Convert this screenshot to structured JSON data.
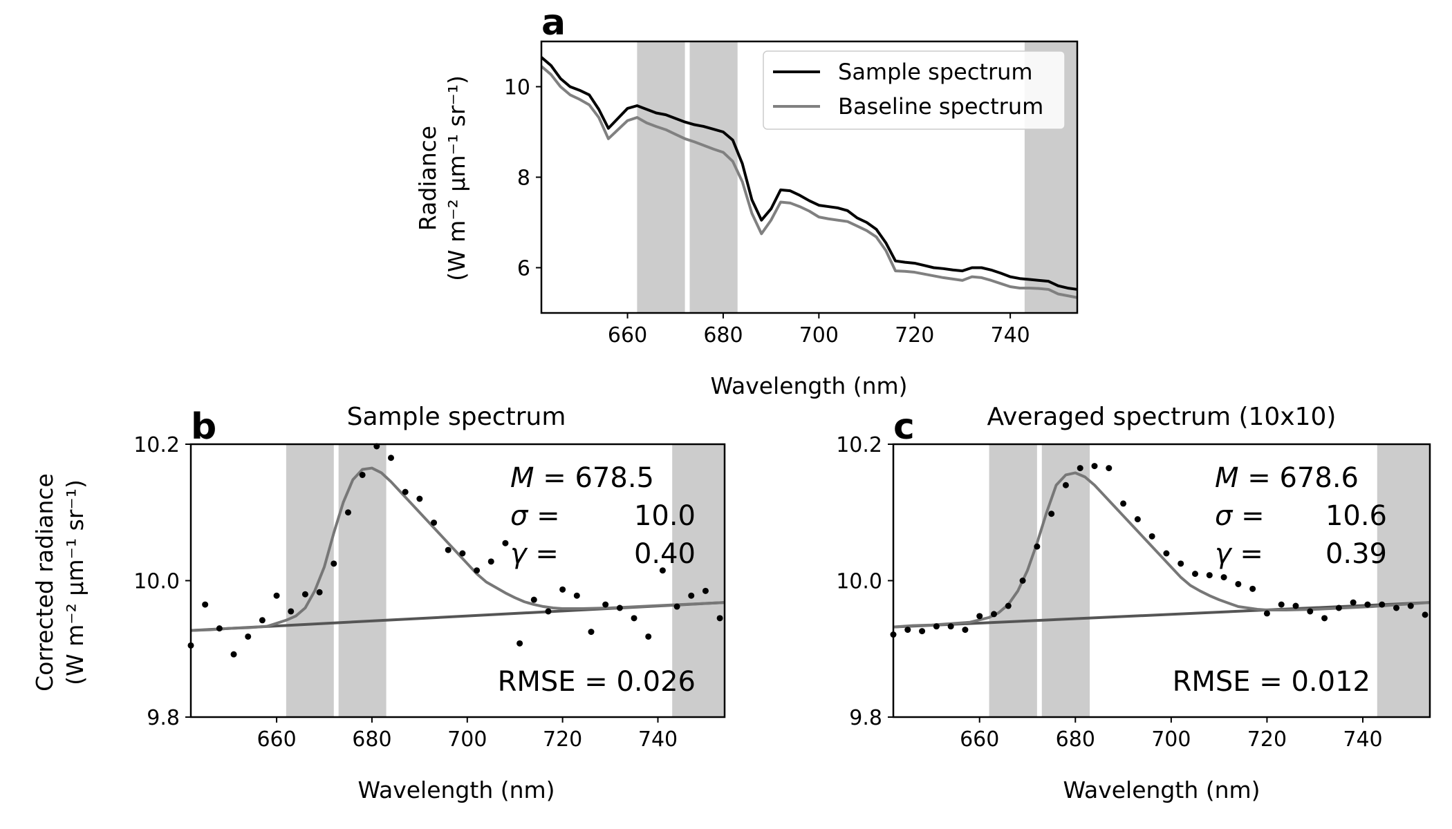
{
  "chart_data": [
    {
      "panel": "a",
      "type": "line",
      "title": "",
      "xlabel": "Wavelength (nm)",
      "ylabel_line1": "Radiance",
      "ylabel_line2": "(W m⁻² μm⁻¹ sr⁻¹)",
      "xlim": [
        642,
        754
      ],
      "ylim": [
        5.0,
        11.0
      ],
      "xticks": [
        "660",
        "680",
        "700",
        "720",
        "740"
      ],
      "yticks": [
        "6",
        "8",
        "10"
      ],
      "shaded_bands": [
        [
          662,
          672
        ],
        [
          673,
          683
        ],
        [
          743,
          754
        ]
      ],
      "legend": {
        "placement": "top-right",
        "entries": [
          "Sample spectrum",
          "Baseline spectrum"
        ]
      },
      "series": [
        {
          "name": "Sample spectrum",
          "color": "#000000",
          "x": [
            642,
            644,
            646,
            648,
            650,
            652,
            654,
            656,
            658,
            660,
            662,
            664,
            666,
            668,
            670,
            672,
            674,
            676,
            678,
            680,
            682,
            684,
            686,
            688,
            690,
            692,
            694,
            696,
            698,
            700,
            702,
            704,
            706,
            708,
            710,
            712,
            714,
            716,
            718,
            720,
            722,
            724,
            726,
            728,
            730,
            732,
            734,
            736,
            738,
            740,
            742,
            744,
            746,
            748,
            750,
            752,
            754
          ],
          "y": [
            10.65,
            10.47,
            10.18,
            10.0,
            9.92,
            9.82,
            9.5,
            9.08,
            9.3,
            9.52,
            9.58,
            9.5,
            9.42,
            9.38,
            9.3,
            9.22,
            9.16,
            9.12,
            9.06,
            9.0,
            8.82,
            8.3,
            7.5,
            7.05,
            7.3,
            7.72,
            7.7,
            7.6,
            7.48,
            7.38,
            7.35,
            7.32,
            7.26,
            7.1,
            7.0,
            6.85,
            6.55,
            6.15,
            6.12,
            6.1,
            6.05,
            6.0,
            5.98,
            5.95,
            5.93,
            6.0,
            6.0,
            5.95,
            5.88,
            5.8,
            5.76,
            5.74,
            5.72,
            5.7,
            5.6,
            5.55,
            5.52
          ]
        },
        {
          "name": "Baseline spectrum",
          "color": "#808080",
          "x": [
            642,
            644,
            646,
            648,
            650,
            652,
            654,
            656,
            658,
            660,
            662,
            664,
            666,
            668,
            670,
            672,
            674,
            676,
            678,
            680,
            682,
            684,
            686,
            688,
            690,
            692,
            694,
            696,
            698,
            700,
            702,
            704,
            706,
            708,
            710,
            712,
            714,
            716,
            718,
            720,
            722,
            724,
            726,
            728,
            730,
            732,
            734,
            736,
            738,
            740,
            742,
            744,
            746,
            748,
            750,
            752,
            754
          ],
          "y": [
            10.45,
            10.27,
            10.0,
            9.82,
            9.72,
            9.6,
            9.32,
            8.85,
            9.05,
            9.25,
            9.32,
            9.2,
            9.12,
            9.05,
            8.95,
            8.85,
            8.78,
            8.7,
            8.62,
            8.55,
            8.35,
            7.9,
            7.2,
            6.75,
            7.05,
            7.45,
            7.43,
            7.35,
            7.25,
            7.12,
            7.08,
            7.05,
            7.02,
            6.92,
            6.82,
            6.68,
            6.38,
            5.93,
            5.92,
            5.9,
            5.86,
            5.82,
            5.78,
            5.75,
            5.72,
            5.8,
            5.78,
            5.72,
            5.65,
            5.58,
            5.55,
            5.55,
            5.54,
            5.52,
            5.42,
            5.38,
            5.34
          ]
        }
      ]
    },
    {
      "panel": "b",
      "type": "scatter",
      "title": "Sample spectrum",
      "xlabel": "Wavelength (nm)",
      "ylabel_line1": "Corrected radiance",
      "ylabel_line2": "(W m⁻² μm⁻¹ sr⁻¹)",
      "xlim": [
        642,
        754
      ],
      "ylim": [
        9.8,
        10.2
      ],
      "xticks": [
        "660",
        "680",
        "700",
        "720",
        "740"
      ],
      "yticks": [
        "9.8",
        "10.0",
        "10.2"
      ],
      "shaded_bands": [
        [
          662,
          672
        ],
        [
          673,
          683
        ],
        [
          743,
          754
        ]
      ],
      "annotations": {
        "m": "678.5",
        "sigma": "10.0",
        "gamma": "0.40",
        "rmse": "RMSE = 0.026"
      },
      "points": {
        "x": [
          642,
          645,
          648,
          651,
          654,
          657,
          660,
          663,
          666,
          669,
          672,
          675,
          678,
          681,
          684,
          687,
          690,
          693,
          696,
          699,
          702,
          705,
          708,
          711,
          714,
          717,
          720,
          723,
          726,
          729,
          732,
          735,
          738,
          741,
          744,
          747,
          750,
          753
        ],
        "y": [
          9.905,
          9.965,
          9.93,
          9.892,
          9.918,
          9.942,
          9.978,
          9.955,
          9.98,
          9.983,
          10.025,
          10.1,
          10.155,
          10.197,
          10.18,
          10.13,
          10.12,
          10.085,
          10.045,
          10.04,
          10.015,
          10.028,
          10.055,
          9.908,
          9.972,
          9.955,
          9.987,
          9.978,
          9.925,
          9.965,
          9.96,
          9.945,
          9.918,
          10.015,
          9.962,
          9.978,
          9.985,
          9.945
        ]
      },
      "fit": {
        "x": [
          642,
          646,
          650,
          654,
          658,
          662,
          664,
          666,
          668,
          670,
          672,
          674,
          676,
          678,
          680,
          682,
          684,
          686,
          688,
          690,
          692,
          694,
          696,
          698,
          700,
          702,
          704,
          706,
          708,
          710,
          712,
          714,
          716,
          718,
          720,
          724,
          730,
          736,
          742,
          748,
          754
        ],
        "y": [
          9.927,
          9.928,
          9.93,
          9.931,
          9.933,
          9.942,
          9.948,
          9.96,
          9.985,
          10.02,
          10.07,
          10.115,
          10.148,
          10.163,
          10.165,
          10.158,
          10.145,
          10.13,
          10.115,
          10.1,
          10.085,
          10.07,
          10.055,
          10.04,
          10.025,
          10.01,
          9.998,
          9.99,
          9.982,
          9.975,
          9.969,
          9.965,
          9.962,
          9.96,
          9.959,
          9.959,
          9.96,
          9.962,
          9.964,
          9.966,
          9.968
        ]
      },
      "baseline": {
        "x": [
          642,
          754
        ],
        "y": [
          9.927,
          9.968
        ]
      }
    },
    {
      "panel": "c",
      "type": "scatter",
      "title": "Averaged spectrum (10x10)",
      "xlabel": "Wavelength (nm)",
      "ylabel_line1": "",
      "ylabel_line2": "",
      "xlim": [
        642,
        754
      ],
      "ylim": [
        9.8,
        10.2
      ],
      "xticks": [
        "660",
        "680",
        "700",
        "720",
        "740"
      ],
      "yticks": [
        "9.8",
        "10.0",
        "10.2"
      ],
      "shaded_bands": [
        [
          662,
          672
        ],
        [
          673,
          683
        ],
        [
          743,
          754
        ]
      ],
      "annotations": {
        "m": "678.6",
        "sigma": "10.6",
        "gamma": "0.39",
        "rmse": "RMSE = 0.012"
      },
      "points": {
        "x": [
          642,
          645,
          648,
          651,
          654,
          657,
          660,
          663,
          666,
          669,
          672,
          675,
          678,
          681,
          684,
          687,
          690,
          693,
          696,
          699,
          702,
          705,
          708,
          711,
          714,
          717,
          720,
          723,
          726,
          729,
          732,
          735,
          738,
          741,
          744,
          747,
          750,
          753
        ],
        "y": [
          9.921,
          9.928,
          9.926,
          9.933,
          9.933,
          9.928,
          9.948,
          9.951,
          9.963,
          10.0,
          10.05,
          10.098,
          10.14,
          10.165,
          10.168,
          10.165,
          10.113,
          10.09,
          10.065,
          10.04,
          10.025,
          10.01,
          10.008,
          10.005,
          9.995,
          9.988,
          9.952,
          9.965,
          9.963,
          9.955,
          9.945,
          9.96,
          9.968,
          9.965,
          9.965,
          9.96,
          9.963,
          9.95
        ]
      },
      "fit": {
        "x": [
          642,
          646,
          650,
          654,
          658,
          662,
          664,
          666,
          668,
          670,
          672,
          674,
          676,
          678,
          680,
          682,
          684,
          686,
          688,
          690,
          692,
          694,
          696,
          698,
          700,
          702,
          704,
          706,
          708,
          710,
          712,
          714,
          716,
          718,
          720,
          724,
          730,
          736,
          742,
          748,
          754
        ],
        "y": [
          9.932,
          9.934,
          9.935,
          9.937,
          9.939,
          9.946,
          9.953,
          9.965,
          9.985,
          10.015,
          10.055,
          10.1,
          10.14,
          10.155,
          10.158,
          10.152,
          10.14,
          10.125,
          10.11,
          10.095,
          10.08,
          10.065,
          10.05,
          10.035,
          10.02,
          10.005,
          9.993,
          9.985,
          9.978,
          9.972,
          9.967,
          9.962,
          9.96,
          9.958,
          9.957,
          9.957,
          9.958,
          9.96,
          9.962,
          9.965,
          9.968
        ]
      },
      "baseline": {
        "x": [
          642,
          754
        ],
        "y": [
          9.932,
          9.968
        ]
      }
    }
  ]
}
